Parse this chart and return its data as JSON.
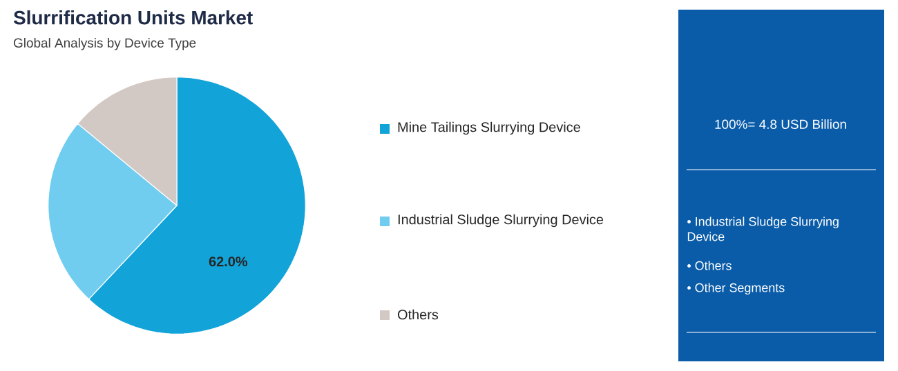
{
  "chart_data": {
    "type": "pie",
    "title": "Slurrification Units Market",
    "subtitle": "Global Analysis by Device Type",
    "categories": [
      "Mine Tailings Slurrying Device",
      "Industrial Sludge Slurrying Device",
      "Others"
    ],
    "values": [
      62.0,
      24.0,
      14.0
    ],
    "colors": [
      "#12a3d9",
      "#70cdf0",
      "#d3c9c4"
    ],
    "value_labels": [
      "62.0%",
      null,
      null
    ],
    "legend": "right",
    "annotations": [
      "100%= 4.8 USD Billion",
      "• Industrial Sludge Slurrying Device",
      "• Others",
      "• Other Segments"
    ]
  }
}
